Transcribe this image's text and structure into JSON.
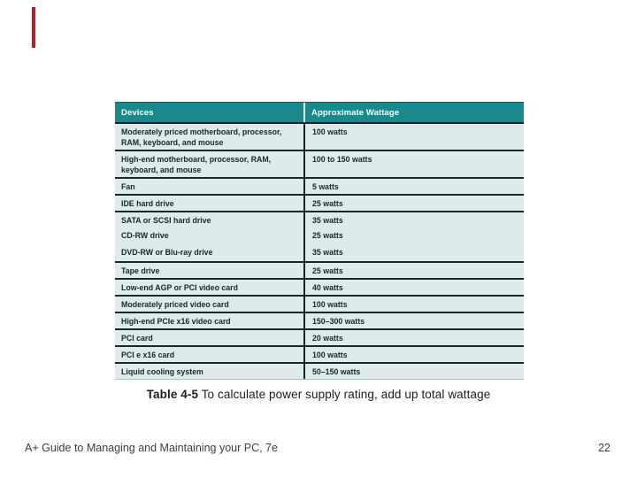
{
  "decoration": {
    "cursor_mark_color": "#b32025"
  },
  "colors": {
    "header_bg": "#1a898c",
    "header_text": "#ffffff",
    "body_bg": "#dfebea",
    "separator": "#15282b",
    "page_bg": "#ffffff"
  },
  "table": {
    "headers": [
      "Devices",
      "Approximate Wattage"
    ],
    "rows": [
      {
        "device": "Moderately priced motherboard, processor, RAM, keyboard, and mouse",
        "wattage": "100 watts",
        "tall": true
      },
      {
        "device": "High-end motherboard, processor, RAM, keyboard, and mouse",
        "wattage": "100 to 150 watts",
        "tall": true
      },
      {
        "device": "Fan",
        "wattage": "5 watts"
      },
      {
        "device": "IDE hard drive",
        "wattage": "25 watts"
      },
      {
        "device": "SATA or SCSI hard drive",
        "wattage": "35 watts"
      },
      {
        "device": "CD-RW drive",
        "wattage": "25 watts",
        "nosep": true
      },
      {
        "device": "DVD-RW or Blu-ray drive",
        "wattage": "35 watts",
        "nosep": true
      },
      {
        "device": "Tape drive",
        "wattage": "25 watts"
      },
      {
        "device": "Low-end AGP or PCI video card",
        "wattage": "40 watts"
      },
      {
        "device": "Moderately priced video card",
        "wattage": "100 watts"
      },
      {
        "device": "High-end PCIe x16 video card",
        "wattage": "150–300 watts"
      },
      {
        "device": "PCI card",
        "wattage": "20 watts"
      },
      {
        "device": "PCI e x16 card",
        "wattage": "100 watts"
      },
      {
        "device": "Liquid cooling system",
        "wattage": "50–150 watts"
      }
    ]
  },
  "caption": {
    "label": "Table 4-5",
    "text": " To calculate power supply rating, add up total wattage"
  },
  "footer": {
    "title": "A+ Guide to Managing and Maintaining your PC, 7e",
    "page": "22"
  }
}
